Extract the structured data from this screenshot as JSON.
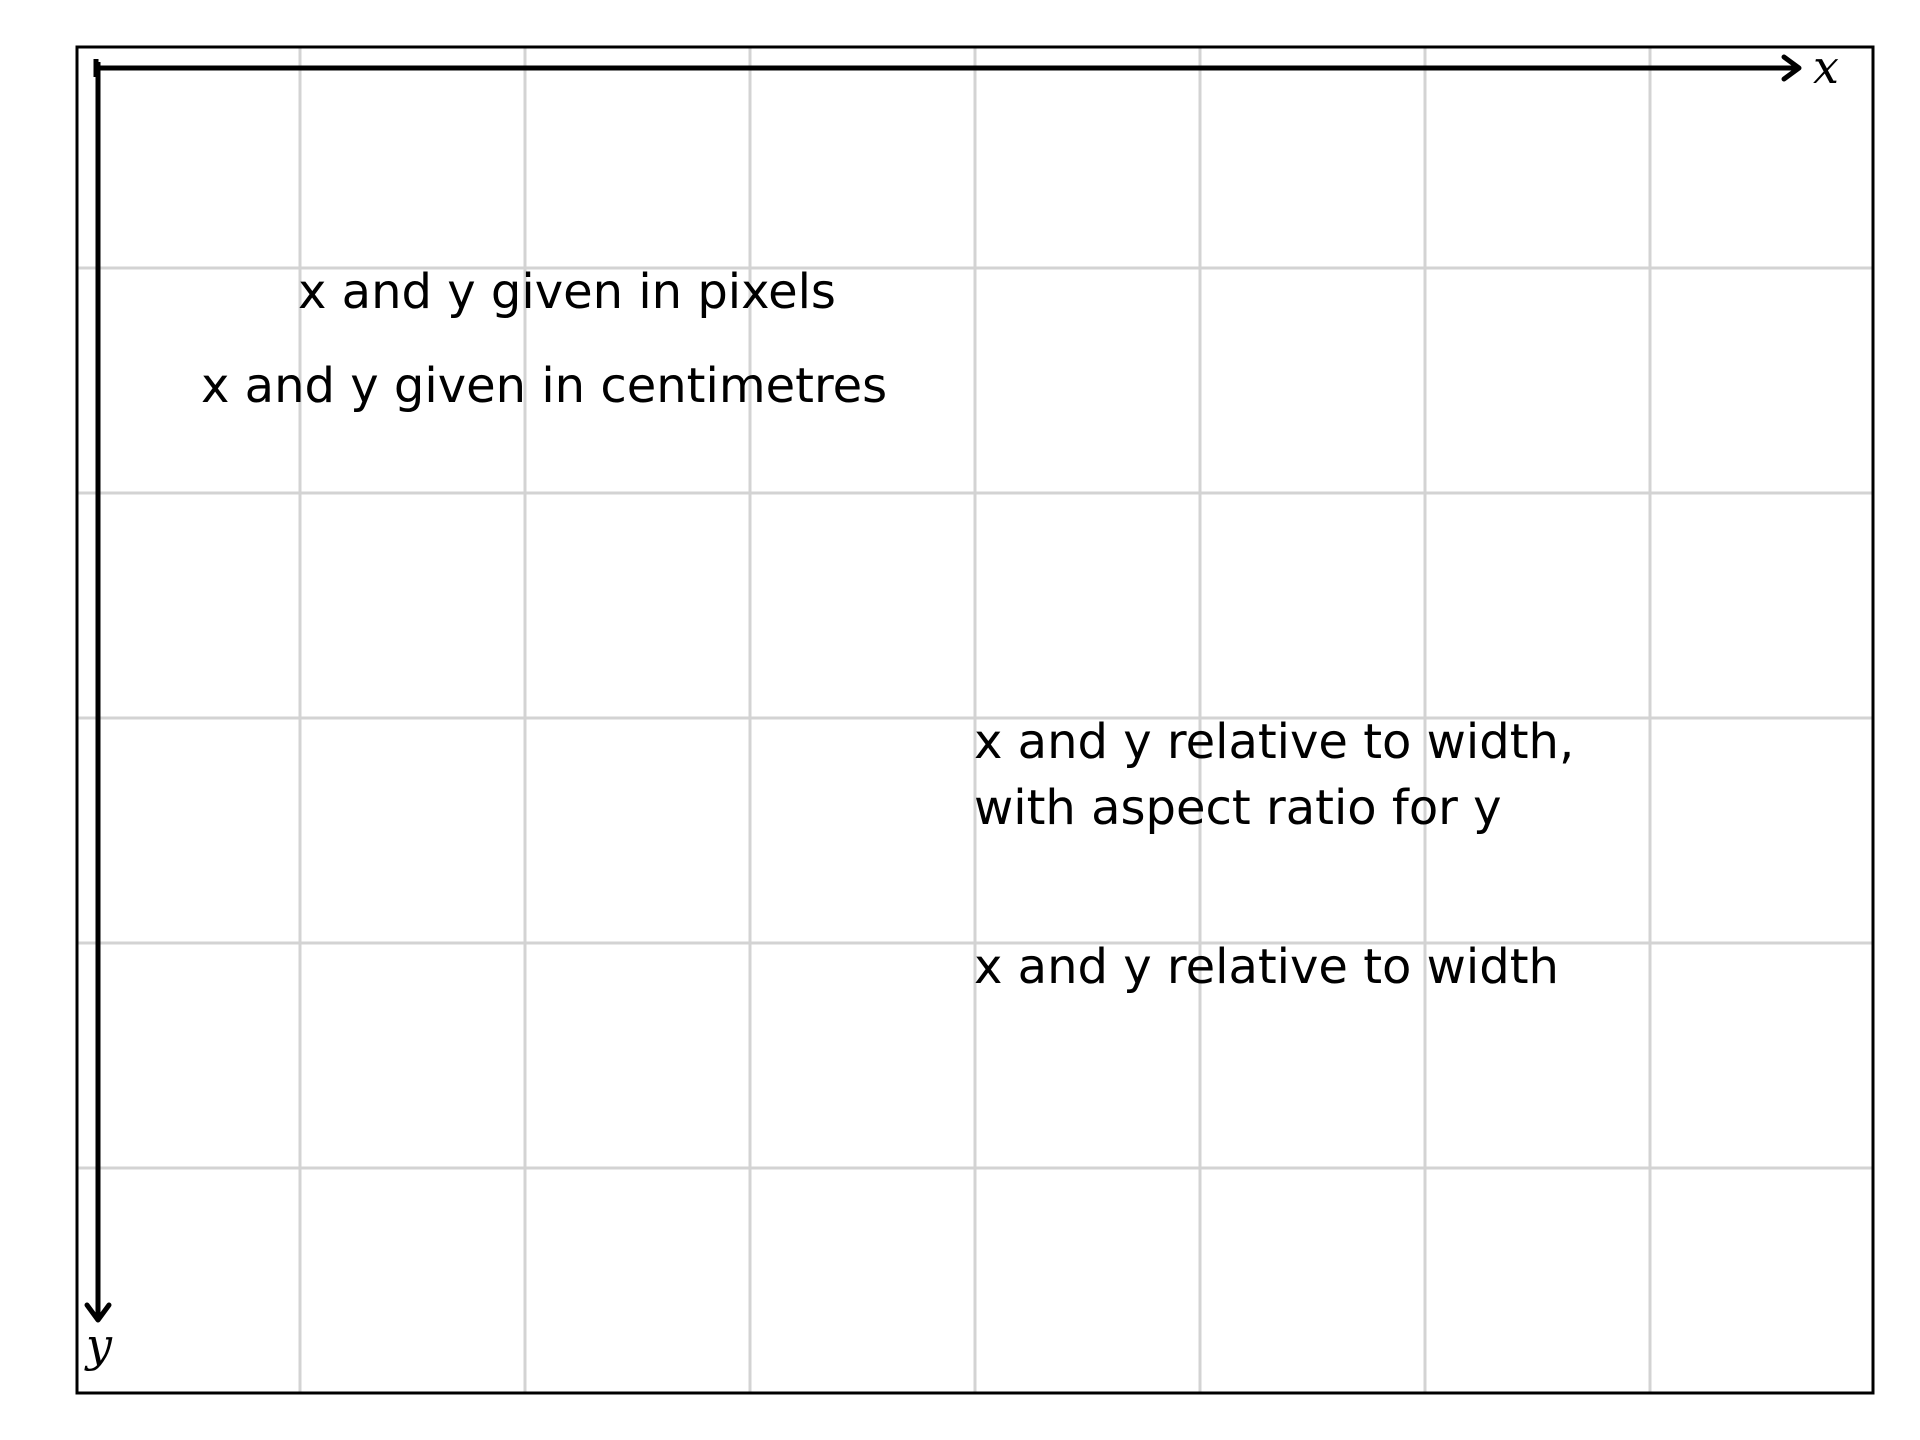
{
  "axes": {
    "x_label": "x",
    "y_label": "y"
  },
  "grid": {
    "columns": 8,
    "rows": 6
  },
  "labels": {
    "pixels": "x and y given in pixels",
    "centimetres": "x and y given in centimetres",
    "relative_aspect_line1": "x and y relative to width,",
    "relative_aspect_line2": "with aspect ratio for y",
    "relative_width": "x and y relative to width"
  },
  "colors": {
    "grid": "#d3d3d3",
    "ink": "#000000",
    "background": "#ffffff"
  }
}
